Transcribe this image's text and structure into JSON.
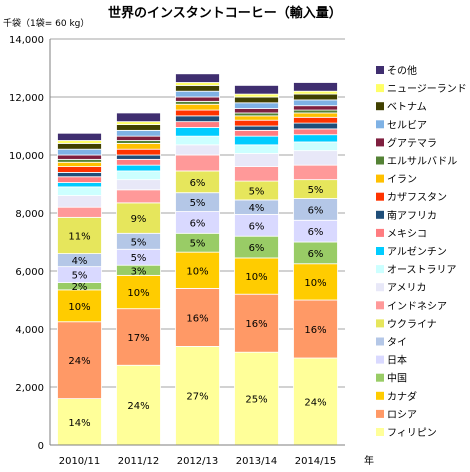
{
  "chart_data": {
    "type": "bar",
    "stacked": true,
    "title": "世界のインスタントコーヒー（輸入量）",
    "unit_label": "千袋（1袋= 60 kg）",
    "xlabel": "年",
    "ylabel": "",
    "ylim": [
      0,
      14000
    ],
    "yticks": [
      "0",
      "2,000",
      "4,000",
      "6,000",
      "8,000",
      "10,000",
      "12,000",
      "14,000"
    ],
    "grid": true,
    "legend_position": "right",
    "categories": [
      "2010/11",
      "2011/12",
      "2012/13",
      "2013/14",
      "2014/15"
    ],
    "series": [
      {
        "name": "フィリピン",
        "color": "#ffff99",
        "values": [
          1600,
          2750,
          3400,
          3200,
          3000
        ],
        "labels": [
          "14%",
          "24%",
          "27%",
          "25%",
          "24%"
        ]
      },
      {
        "name": "ロシア",
        "color": "#ff9966",
        "values": [
          2650,
          1950,
          2000,
          2000,
          2000
        ],
        "labels": [
          "24%",
          "17%",
          "16%",
          "16%",
          "16%"
        ]
      },
      {
        "name": "カナダ",
        "color": "#ffcc00",
        "values": [
          1100,
          1150,
          1250,
          1250,
          1250
        ],
        "labels": [
          "10%",
          "10%",
          "10%",
          "10%",
          "10%"
        ]
      },
      {
        "name": "中国",
        "color": "#99cc66",
        "values": [
          250,
          350,
          650,
          750,
          750
        ],
        "labels": [
          "2%",
          "3%",
          "5%",
          "6%",
          "6%"
        ]
      },
      {
        "name": "日本",
        "color": "#d9d9ff",
        "values": [
          550,
          550,
          750,
          750,
          750
        ],
        "labels": [
          "5%",
          "5%",
          "6%",
          "6%",
          "6%"
        ]
      },
      {
        "name": "タイ",
        "color": "#b4c7e7",
        "values": [
          450,
          550,
          650,
          500,
          750
        ],
        "labels": [
          "4%",
          "5%",
          "5%",
          "4%",
          "6%"
        ]
      },
      {
        "name": "ウクライナ",
        "color": "#e6e65c",
        "values": [
          1250,
          1050,
          750,
          650,
          650
        ],
        "labels": [
          "11%",
          "9%",
          "6%",
          "5%",
          "5%"
        ]
      },
      {
        "name": "インドネシア",
        "color": "#ff9999",
        "values": [
          350,
          450,
          550,
          500,
          500
        ],
        "labels": [
          "",
          "",
          "",
          "",
          ""
        ]
      },
      {
        "name": "アメリカ",
        "color": "#e8e8f8",
        "values": [
          400,
          350,
          350,
          450,
          500
        ],
        "labels": [
          "",
          "",
          "",
          "",
          ""
        ]
      },
      {
        "name": "オーストラリア",
        "color": "#ccffff",
        "values": [
          300,
          300,
          300,
          300,
          300
        ],
        "labels": [
          "",
          "",
          "",
          "",
          ""
        ]
      },
      {
        "name": "アルゼンチン",
        "color": "#00ccff",
        "values": [
          150,
          200,
          300,
          300,
          250
        ],
        "labels": [
          "",
          "",
          "",
          "",
          ""
        ]
      },
      {
        "name": "メキシコ",
        "color": "#ff7c80",
        "values": [
          200,
          200,
          200,
          200,
          200
        ],
        "labels": [
          "",
          "",
          "",
          "",
          ""
        ]
      },
      {
        "name": "南アフリカ",
        "color": "#1f4e79",
        "values": [
          150,
          150,
          200,
          150,
          200
        ],
        "labels": [
          "",
          "",
          "",
          "",
          ""
        ]
      },
      {
        "name": "カザフスタン",
        "color": "#ff3300",
        "values": [
          200,
          200,
          200,
          200,
          200
        ],
        "labels": [
          "",
          "",
          "",
          "",
          ""
        ]
      },
      {
        "name": "イラン",
        "color": "#ffc000",
        "values": [
          150,
          200,
          200,
          150,
          150
        ],
        "labels": [
          "",
          "",
          "",
          "",
          ""
        ]
      },
      {
        "name": "エルサルバドル",
        "color": "#548235",
        "values": [
          100,
          100,
          100,
          100,
          100
        ],
        "labels": [
          "",
          "",
          "",
          "",
          ""
        ]
      },
      {
        "name": "グアテマラ",
        "color": "#7f1f3f",
        "values": [
          150,
          150,
          150,
          150,
          150
        ],
        "labels": [
          "",
          "",
          "",
          "",
          ""
        ]
      },
      {
        "name": "セルビア",
        "color": "#7fb2e5",
        "values": [
          200,
          200,
          200,
          200,
          200
        ],
        "labels": [
          "",
          "",
          "",
          "",
          ""
        ]
      },
      {
        "name": "ベトナム",
        "color": "#404000",
        "values": [
          200,
          200,
          200,
          200,
          200
        ],
        "labels": [
          "",
          "",
          "",
          "",
          ""
        ]
      },
      {
        "name": "ニュージーランド",
        "color": "#ffff66",
        "values": [
          100,
          100,
          100,
          100,
          100
        ],
        "labels": [
          "",
          "",
          "",
          "",
          ""
        ]
      },
      {
        "name": "その他",
        "color": "#3f2e6f",
        "values": [
          250,
          300,
          300,
          300,
          300
        ],
        "labels": [
          "",
          "",
          "",
          "",
          ""
        ]
      }
    ]
  }
}
